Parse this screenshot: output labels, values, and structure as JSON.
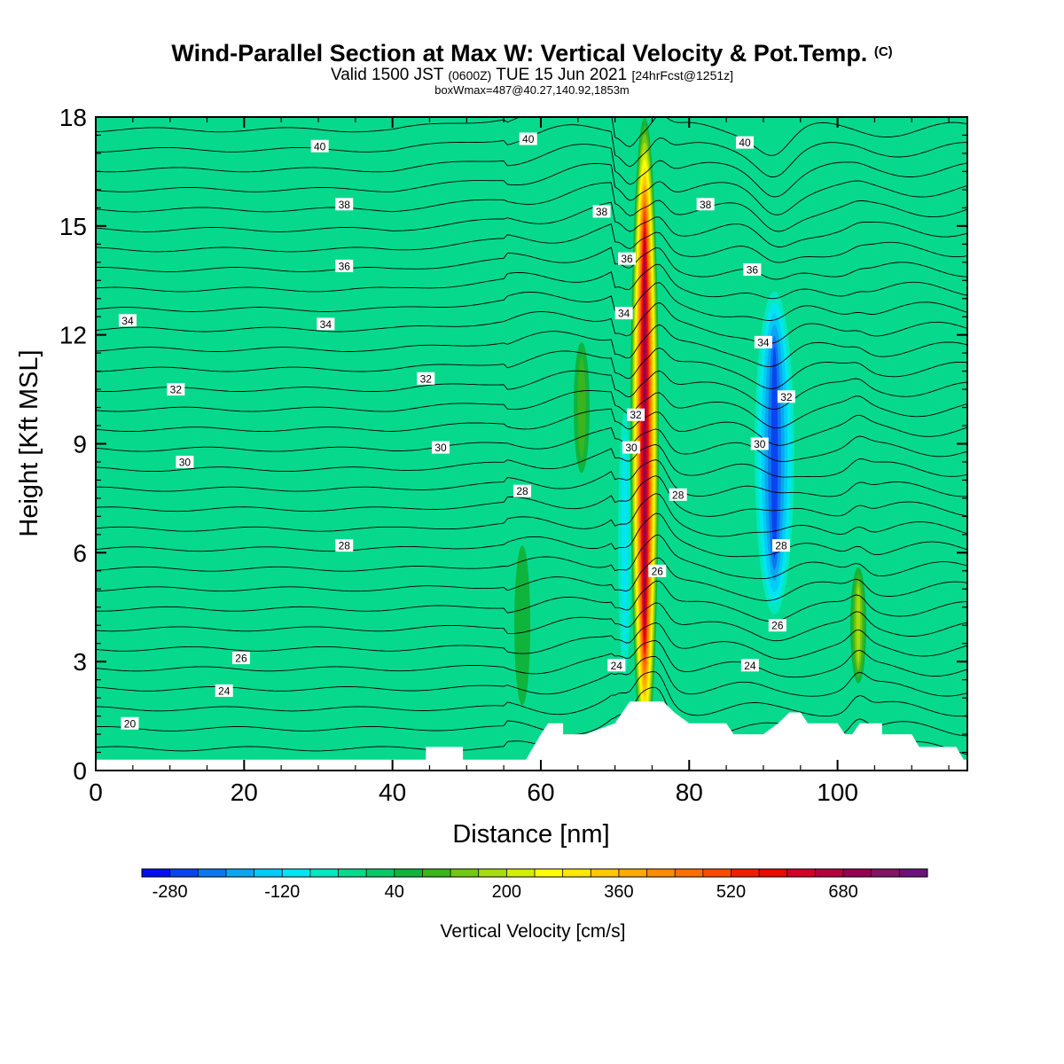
{
  "title": {
    "main": "Wind-Parallel Section at Max W: Vertical Velocity & Pot.Temp.",
    "main_copyright": "(C)",
    "valid_prefix": "Valid 1500 JST",
    "valid_utc": "(0600Z)",
    "valid_date": "TUE 15 Jun 2021",
    "forecast": "[24hrFcst@1251z]",
    "boxwmax": "boxWmax=487@40.27,140.92,1853m"
  },
  "colors": {
    "background_fill": "#06d98c",
    "terrain": "#ffffff"
  },
  "chart_data": {
    "type": "heatmap",
    "xlabel": "Distance [nm]",
    "ylabel": "Height [Kft MSL]",
    "xlim": [
      0,
      117.5
    ],
    "ylim": [
      0,
      18
    ],
    "x_ticks": [
      "0",
      "20",
      "40",
      "60",
      "80",
      "100"
    ],
    "x_tick_values": [
      0,
      20,
      40,
      60,
      80,
      100
    ],
    "y_ticks": [
      "0",
      "3",
      "6",
      "9",
      "12",
      "15",
      "18"
    ],
    "y_tick_values": [
      0,
      3,
      6,
      9,
      12,
      15,
      18
    ],
    "colorbar": {
      "title": "Vertical Velocity [cm/s]",
      "labels": [
        "-280",
        "-120",
        "40",
        "200",
        "360",
        "520",
        "680"
      ],
      "label_values": [
        -280,
        -120,
        40,
        200,
        360,
        520,
        680
      ],
      "min": -320,
      "step": 40,
      "colors": [
        "#0011ee",
        "#0a44f0",
        "#0a78f0",
        "#0aa6f2",
        "#00ccf5",
        "#00e6f0",
        "#00e8c0",
        "#06d98c",
        "#0ac864",
        "#0fb43c",
        "#3cb41e",
        "#73c814",
        "#a5dc0f",
        "#d2ee05",
        "#ffff00",
        "#ffe600",
        "#ffc800",
        "#ffaa00",
        "#ff8c00",
        "#ff6e00",
        "#ff4b00",
        "#f01e00",
        "#e60a00",
        "#d20028",
        "#b4003c",
        "#960050",
        "#821464",
        "#6a1478"
      ]
    },
    "terrain_kft": [
      {
        "x": 0,
        "h": 0.3
      },
      {
        "x": 44.5,
        "h": 0.3
      },
      {
        "x": 44.5,
        "h": 0.65
      },
      {
        "x": 49.5,
        "h": 0.65
      },
      {
        "x": 49.5,
        "h": 0.3
      },
      {
        "x": 58,
        "h": 0.3
      },
      {
        "x": 59,
        "h": 0.65
      },
      {
        "x": 60,
        "h": 1.0
      },
      {
        "x": 61,
        "h": 1.3
      },
      {
        "x": 63,
        "h": 1.3
      },
      {
        "x": 63,
        "h": 1.0
      },
      {
        "x": 66,
        "h": 1.0
      },
      {
        "x": 70,
        "h": 1.3
      },
      {
        "x": 71,
        "h": 1.6
      },
      {
        "x": 72,
        "h": 1.9
      },
      {
        "x": 76.5,
        "h": 1.9
      },
      {
        "x": 78,
        "h": 1.6
      },
      {
        "x": 80,
        "h": 1.3
      },
      {
        "x": 85,
        "h": 1.3
      },
      {
        "x": 86,
        "h": 1.0
      },
      {
        "x": 90,
        "h": 1.0
      },
      {
        "x": 92,
        "h": 1.3
      },
      {
        "x": 93.5,
        "h": 1.6
      },
      {
        "x": 95,
        "h": 1.6
      },
      {
        "x": 96,
        "h": 1.3
      },
      {
        "x": 100,
        "h": 1.3
      },
      {
        "x": 101,
        "h": 1.0
      },
      {
        "x": 102,
        "h": 1.0
      },
      {
        "x": 103,
        "h": 1.3
      },
      {
        "x": 106,
        "h": 1.3
      },
      {
        "x": 106,
        "h": 1.0
      },
      {
        "x": 110,
        "h": 1.0
      },
      {
        "x": 111,
        "h": 0.65
      },
      {
        "x": 116,
        "h": 0.65
      },
      {
        "x": 117,
        "h": 0.3
      },
      {
        "x": 117.5,
        "h": 0.3
      }
    ],
    "updraft_features": [
      {
        "name": "main updraft core",
        "x": 74,
        "y_range": [
          0.4,
          18
        ],
        "w_max": 720
      },
      {
        "name": "weak updraft",
        "x": 65.5,
        "y_range": [
          8.2,
          11.8
        ],
        "w_max": 100
      },
      {
        "name": "weak updraft",
        "x": 102.8,
        "y_range": [
          2.4,
          5.6
        ],
        "w_max": 200
      },
      {
        "name": "weak updraft",
        "x": 57.5,
        "y_range": [
          1.8,
          6.2
        ],
        "w_max": 80
      }
    ],
    "downdraft_features": [
      {
        "name": "downdraft core",
        "x": 91.5,
        "y_range": [
          4.0,
          13.5
        ],
        "w_min": -280
      },
      {
        "name": "downdraft flank",
        "x": 71.3,
        "y_range": [
          2.0,
          10.5
        ],
        "w_min": -120
      }
    ],
    "theta_contours": {
      "levels": [
        20,
        22,
        24,
        26,
        28,
        30,
        32,
        34,
        36,
        38,
        40
      ],
      "labels": [
        {
          "text": "20",
          "x": 4.6,
          "y": 1.3
        },
        {
          "text": "24",
          "x": 17.3,
          "y": 2.2
        },
        {
          "text": "26",
          "x": 19.6,
          "y": 3.1
        },
        {
          "text": "28",
          "x": 33.5,
          "y": 6.2
        },
        {
          "text": "30",
          "x": 12.0,
          "y": 8.5
        },
        {
          "text": "30",
          "x": 46.5,
          "y": 8.9
        },
        {
          "text": "32",
          "x": 10.8,
          "y": 10.5
        },
        {
          "text": "32",
          "x": 44.5,
          "y": 10.8
        },
        {
          "text": "34",
          "x": 4.3,
          "y": 12.4
        },
        {
          "text": "34",
          "x": 31.0,
          "y": 12.3
        },
        {
          "text": "36",
          "x": 33.5,
          "y": 13.9
        },
        {
          "text": "38",
          "x": 33.5,
          "y": 15.6
        },
        {
          "text": "40",
          "x": 30.2,
          "y": 17.2
        },
        {
          "text": "28",
          "x": 57.5,
          "y": 7.7
        },
        {
          "text": "40",
          "x": 58.3,
          "y": 17.4
        },
        {
          "text": "38",
          "x": 68.2,
          "y": 15.4
        },
        {
          "text": "36",
          "x": 71.6,
          "y": 14.1
        },
        {
          "text": "34",
          "x": 71.2,
          "y": 12.6
        },
        {
          "text": "32",
          "x": 72.8,
          "y": 9.8
        },
        {
          "text": "30",
          "x": 72.2,
          "y": 8.9
        },
        {
          "text": "24",
          "x": 70.2,
          "y": 2.9
        },
        {
          "text": "26",
          "x": 75.7,
          "y": 5.5
        },
        {
          "text": "28",
          "x": 78.5,
          "y": 7.6
        },
        {
          "text": "38",
          "x": 82.2,
          "y": 15.6
        },
        {
          "text": "40",
          "x": 87.5,
          "y": 17.3
        },
        {
          "text": "36",
          "x": 88.5,
          "y": 13.8
        },
        {
          "text": "34",
          "x": 90.0,
          "y": 11.8
        },
        {
          "text": "32",
          "x": 93.1,
          "y": 10.3
        },
        {
          "text": "30",
          "x": 89.5,
          "y": 9.0
        },
        {
          "text": "28",
          "x": 92.4,
          "y": 6.2
        },
        {
          "text": "26",
          "x": 91.9,
          "y": 4.0
        },
        {
          "text": "24",
          "x": 88.2,
          "y": 2.9
        }
      ]
    }
  }
}
